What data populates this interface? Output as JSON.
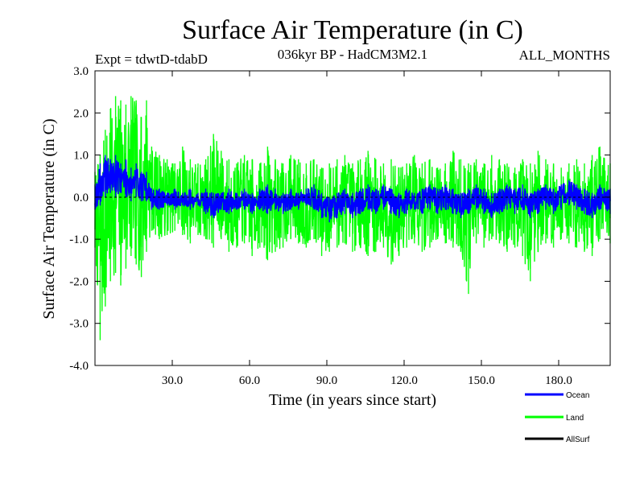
{
  "chart_data": {
    "type": "line",
    "title": "Surface Air Temperature (in C)",
    "subtitle_left": "Expt = tdwtD-tdabD",
    "subtitle_center": "036kyr BP - HadCM3M2.1",
    "subtitle_right": "ALL_MONTHS",
    "xlabel": "Time (in years since start)",
    "ylabel": "Surface Air Temperature (in C)",
    "xlim": [
      0,
      200
    ],
    "ylim": [
      -4.0,
      3.0
    ],
    "x_ticks": [
      30,
      60,
      90,
      120,
      150,
      180
    ],
    "x_tick_labels": [
      "30.0",
      "60.0",
      "90.0",
      "120.0",
      "150.0",
      "180.0"
    ],
    "y_ticks": [
      3.0,
      2.0,
      1.0,
      0.0,
      -1.0,
      -2.0,
      -3.0,
      -4.0
    ],
    "y_tick_labels": [
      "3.0",
      "2.0",
      "1.0",
      "0.0",
      "-1.0",
      "-2.0",
      "-3.0",
      "-4.0"
    ],
    "legend": [
      {
        "name": "Ocean",
        "color": "#0000ff"
      },
      {
        "name": "Land",
        "color": "#00ff00"
      },
      {
        "name": "AllSurf",
        "color": "#000000"
      }
    ],
    "legend_position": "bottom-right",
    "series": [
      {
        "name": "Land",
        "color": "#00ff00",
        "x": [
          0,
          2,
          4,
          6,
          8,
          10,
          12,
          14,
          16,
          18,
          20,
          22,
          25,
          28,
          31,
          34,
          37,
          40,
          43,
          46,
          49,
          52,
          55,
          58,
          61,
          64,
          67,
          70,
          73,
          76,
          79,
          82,
          85,
          88,
          91,
          94,
          97,
          100,
          103,
          106,
          109,
          112,
          115,
          118,
          121,
          124,
          127,
          130,
          133,
          136,
          139,
          142,
          145,
          148,
          151,
          154,
          157,
          160,
          163,
          166,
          169,
          172,
          175,
          178,
          181,
          184,
          187,
          190,
          193,
          196,
          200
        ],
        "min": [
          -1.2,
          -3.4,
          -2.6,
          -2.0,
          -1.8,
          -2.1,
          -1.7,
          -1.4,
          -1.6,
          -1.9,
          -1.3,
          -0.8,
          -1.0,
          -0.9,
          -0.8,
          -0.9,
          -1.1,
          -0.9,
          -1.0,
          -1.2,
          -1.0,
          -1.3,
          -1.2,
          -1.1,
          -1.4,
          -1.2,
          -1.5,
          -1.3,
          -1.2,
          -1.0,
          -1.1,
          -1.2,
          -1.0,
          -1.4,
          -1.3,
          -1.2,
          -1.1,
          -1.3,
          -1.2,
          -1.4,
          -1.3,
          -1.2,
          -1.6,
          -1.4,
          -1.2,
          -1.1,
          -1.3,
          -1.2,
          -1.0,
          -1.1,
          -1.2,
          -1.3,
          -2.3,
          -1.1,
          -1.2,
          -1.0,
          -1.1,
          -1.3,
          -1.2,
          -1.4,
          -2.0,
          -1.3,
          -1.1,
          -1.2,
          -1.0,
          -1.1,
          -1.2,
          -1.3,
          -1.4,
          -1.0,
          -1.1
        ],
        "max": [
          0.6,
          1.0,
          1.6,
          2.1,
          2.4,
          2.3,
          2.2,
          2.4,
          2.3,
          1.9,
          2.3,
          1.2,
          1.0,
          0.9,
          0.8,
          1.2,
          0.9,
          0.8,
          0.9,
          1.5,
          1.1,
          0.9,
          0.8,
          1.0,
          0.9,
          0.8,
          1.2,
          0.9,
          0.8,
          1.0,
          0.9,
          0.8,
          0.9,
          0.7,
          0.8,
          0.9,
          1.0,
          0.8,
          0.9,
          1.1,
          0.9,
          0.8,
          0.9,
          0.7,
          0.8,
          1.0,
          0.8,
          0.9,
          0.7,
          0.8,
          1.1,
          0.9,
          0.8,
          0.9,
          0.8,
          1.0,
          0.9,
          0.8,
          0.7,
          0.9,
          0.8,
          1.1,
          0.9,
          0.8,
          0.7,
          0.8,
          0.9,
          0.8,
          1.0,
          1.2,
          0.8
        ]
      },
      {
        "name": "Ocean",
        "color": "#0000ff",
        "x": [
          0,
          2,
          4,
          6,
          8,
          10,
          12,
          14,
          16,
          18,
          20,
          22,
          25,
          28,
          31,
          34,
          37,
          40,
          43,
          46,
          49,
          52,
          55,
          58,
          61,
          64,
          67,
          70,
          73,
          76,
          79,
          82,
          85,
          88,
          91,
          94,
          97,
          100,
          103,
          106,
          109,
          112,
          115,
          118,
          121,
          124,
          127,
          130,
          133,
          136,
          139,
          142,
          145,
          148,
          151,
          154,
          157,
          160,
          163,
          166,
          169,
          172,
          175,
          178,
          181,
          184,
          187,
          190,
          193,
          196,
          200
        ],
        "min": [
          -0.3,
          -0.2,
          0.0,
          0.1,
          0.0,
          0.1,
          0.0,
          -0.1,
          0.0,
          -0.1,
          -0.1,
          -0.3,
          -0.3,
          -0.2,
          -0.3,
          -0.2,
          -0.3,
          -0.2,
          -0.4,
          -0.5,
          -0.3,
          -0.4,
          -0.3,
          -0.3,
          -0.4,
          -0.3,
          -0.4,
          -0.3,
          -0.4,
          -0.3,
          -0.3,
          -0.2,
          -0.3,
          -0.5,
          -0.6,
          -0.5,
          -0.4,
          -0.5,
          -0.4,
          -0.3,
          -0.4,
          -0.3,
          -0.4,
          -0.5,
          -0.4,
          -0.3,
          -0.4,
          -0.3,
          -0.4,
          -0.3,
          -0.4,
          -0.5,
          -0.4,
          -0.3,
          -0.4,
          -0.5,
          -0.4,
          -0.3,
          -0.4,
          -0.3,
          -0.5,
          -0.4,
          -0.3,
          -0.4,
          -0.3,
          -0.2,
          -0.3,
          -0.4,
          -0.5,
          -0.3,
          -0.4
        ],
        "max": [
          0.3,
          0.8,
          1.0,
          0.9,
          1.0,
          0.8,
          0.9,
          0.7,
          0.8,
          0.6,
          0.6,
          0.2,
          0.2,
          0.1,
          0.2,
          0.1,
          0.2,
          0.1,
          0.2,
          0.1,
          0.1,
          0.2,
          0.1,
          0.2,
          0.1,
          0.2,
          0.3,
          0.2,
          0.1,
          0.2,
          0.1,
          0.2,
          0.3,
          0.1,
          0.0,
          0.1,
          0.2,
          0.1,
          0.2,
          0.3,
          0.2,
          0.3,
          0.2,
          0.1,
          0.2,
          0.1,
          0.2,
          0.3,
          0.2,
          0.3,
          0.2,
          0.1,
          0.2,
          0.3,
          0.2,
          0.1,
          0.2,
          0.3,
          0.2,
          0.3,
          0.1,
          0.2,
          0.3,
          0.2,
          0.3,
          0.4,
          0.3,
          0.2,
          0.1,
          0.3,
          0.2
        ]
      }
    ]
  }
}
